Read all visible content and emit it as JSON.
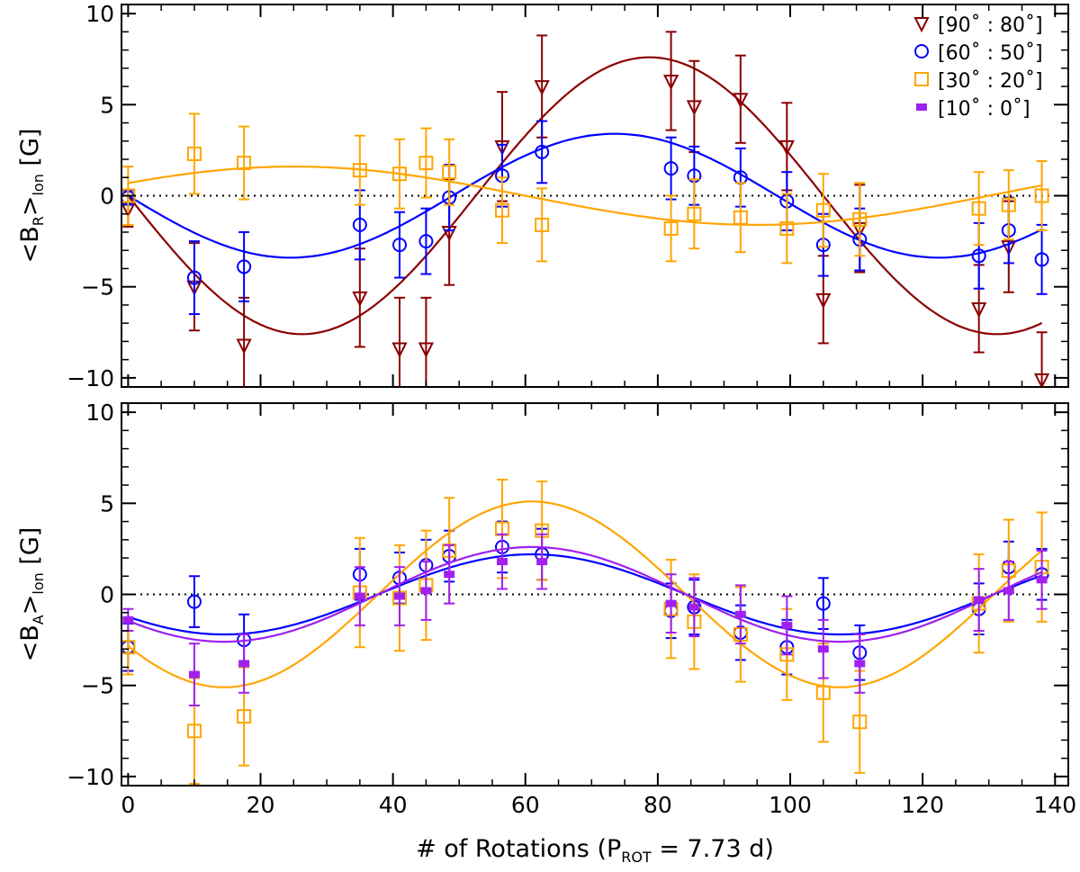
{
  "chart_data": [
    {
      "type": "scatter",
      "panel": "top",
      "ylabel": {
        "pre": "<B",
        "sub_main": "R",
        "post": ">",
        "sub_after": "lon",
        "unit": "[G]"
      },
      "xlim": [
        -1,
        142
      ],
      "ylim": [
        -10.5,
        10.5
      ],
      "xticks": [
        0,
        20,
        40,
        60,
        80,
        100,
        120,
        140
      ],
      "xtick_labels": [
        "",
        "",
        "",
        "",
        "",
        "",
        "",
        ""
      ],
      "yticks": [
        -10,
        -5,
        0,
        5,
        10
      ],
      "ytick_labels": [
        "−10",
        "−5",
        "0",
        "5",
        "10"
      ],
      "zero_line": true,
      "legend": {
        "placement": "top-right",
        "entries": [
          {
            "label": "[90˚ : 80˚]",
            "color": "#8b0000",
            "marker": "triangle-down"
          },
          {
            "label": "[60˚ : 50˚]",
            "color": "#0000ff",
            "marker": "circle"
          },
          {
            "label": "[30˚ : 20˚]",
            "color": "#ffa500",
            "marker": "square"
          },
          {
            "label": "[10˚ : 0˚]",
            "color": "#a020f0",
            "marker": "filled-rect"
          }
        ]
      },
      "series": [
        {
          "name": "[90˚ : 80˚]",
          "color": "#8b0000",
          "marker": "triangle-down",
          "x": [
            0,
            10,
            17.5,
            35,
            41,
            45,
            48.5,
            56.5,
            62.5,
            82,
            85.5,
            92.5,
            99.5,
            105,
            110.5,
            128.5,
            133,
            138
          ],
          "y": [
            -0.7,
            -5.0,
            -8.2,
            -5.6,
            -8.4,
            -8.4,
            -2.0,
            2.7,
            6.0,
            6.3,
            4.9,
            5.3,
            2.7,
            -5.7,
            -1.8,
            -6.2,
            -2.8,
            -10.1
          ],
          "err": [
            1.0,
            2.4,
            2.6,
            2.7,
            2.8,
            2.8,
            2.9,
            3.0,
            2.8,
            2.7,
            2.5,
            2.4,
            2.4,
            2.4,
            2.4,
            2.4,
            2.5,
            2.6
          ],
          "fit": {
            "amp": 7.6,
            "period": 105,
            "phase": 0
          }
        },
        {
          "name": "[60˚ : 50˚]",
          "color": "#0000ff",
          "marker": "circle",
          "x": [
            0,
            10,
            17.5,
            35,
            41,
            45,
            48.5,
            56.5,
            62.5,
            82,
            85.5,
            92.5,
            99.5,
            105,
            110.5,
            128.5,
            133,
            138
          ],
          "y": [
            -0.1,
            -4.5,
            -3.9,
            -1.6,
            -2.7,
            -2.5,
            -0.1,
            1.1,
            2.4,
            1.5,
            1.1,
            1.0,
            -0.3,
            -2.7,
            -2.4,
            -3.3,
            -1.9,
            -3.5
          ],
          "err": [
            0.4,
            2.0,
            1.9,
            1.9,
            1.8,
            1.8,
            1.8,
            1.7,
            1.7,
            1.7,
            1.6,
            1.6,
            1.6,
            1.7,
            1.7,
            1.8,
            1.8,
            1.9
          ],
          "fit": {
            "amp": 3.4,
            "period": 98,
            "phase": 0
          }
        },
        {
          "name": "[30˚ : 20˚]",
          "color": "#ffa500",
          "marker": "square",
          "x": [
            0,
            10,
            17.5,
            35,
            41,
            45,
            48.5,
            56.5,
            62.5,
            82,
            85.5,
            92.5,
            99.5,
            105,
            110.5,
            128.5,
            133,
            138
          ],
          "y": [
            0.0,
            2.3,
            1.8,
            1.4,
            1.2,
            1.8,
            1.3,
            -0.8,
            -1.6,
            -1.8,
            -1.0,
            -1.2,
            -1.8,
            -0.8,
            -1.3,
            -0.7,
            -0.5,
            0.0
          ],
          "err": [
            1.6,
            2.2,
            2.0,
            1.9,
            1.9,
            1.9,
            1.8,
            1.8,
            2.0,
            1.8,
            1.9,
            1.9,
            1.9,
            2.0,
            2.0,
            2.0,
            1.9,
            1.9
          ],
          "fit": {
            "type": "cos",
            "offset": 0,
            "amp": 1.6,
            "period": 140,
            "x0": 25
          }
        }
      ]
    },
    {
      "type": "scatter",
      "panel": "bottom",
      "xlabel": {
        "pre": "# of Rotations (P",
        "sub": "ROT",
        "post": " = 7.73 d)"
      },
      "ylabel": {
        "pre": "<B",
        "sub_main": "A",
        "post": ">",
        "sub_after": "lon",
        "unit": "[G]"
      },
      "xlim": [
        -1,
        142
      ],
      "ylim": [
        -10.5,
        10.5
      ],
      "xticks": [
        0,
        20,
        40,
        60,
        80,
        100,
        120,
        140
      ],
      "xtick_labels": [
        "0",
        "20",
        "40",
        "60",
        "80",
        "100",
        "120",
        "140"
      ],
      "yticks": [
        -10,
        -5,
        0,
        5,
        10
      ],
      "ytick_labels": [
        "−10",
        "−5",
        "0",
        "5",
        "10"
      ],
      "zero_line": true,
      "series": [
        {
          "name": "[60˚ : 50˚]",
          "color": "#0000ff",
          "marker": "circle",
          "x": [
            0,
            10,
            17.5,
            35,
            41,
            45,
            48.5,
            56.5,
            62.5,
            82,
            85.5,
            92.5,
            99.5,
            105,
            110.5,
            128.5,
            133,
            138
          ],
          "y": [
            -2.9,
            -0.4,
            -2.5,
            1.1,
            0.9,
            1.6,
            2.1,
            2.6,
            2.2,
            -0.9,
            -0.7,
            -2.1,
            -2.9,
            -0.5,
            -3.2,
            -0.8,
            1.5,
            1.1
          ],
          "err": [
            1.3,
            1.4,
            1.4,
            1.4,
            1.4,
            1.4,
            1.4,
            1.4,
            1.4,
            1.5,
            1.5,
            1.5,
            1.5,
            1.4,
            1.5,
            1.4,
            1.4,
            1.4
          ],
          "fit": {
            "type": "cos",
            "offset": 0,
            "amp": 2.2,
            "period": 93,
            "x0": 61
          }
        },
        {
          "name": "[30˚ : 20˚]",
          "color": "#ffa500",
          "marker": "square",
          "x": [
            0,
            10,
            17.5,
            35,
            41,
            45,
            48.5,
            56.5,
            62.5,
            82,
            85.5,
            92.5,
            99.5,
            105,
            110.5,
            128.5,
            133,
            138
          ],
          "y": [
            -2.9,
            -7.5,
            -6.7,
            0.1,
            -0.2,
            0.5,
            2.4,
            3.6,
            3.5,
            -0.8,
            -1.5,
            -2.2,
            -3.3,
            -5.4,
            -7.0,
            -0.5,
            1.3,
            1.5
          ],
          "err": [
            1.5,
            2.9,
            2.7,
            3.0,
            2.9,
            3.0,
            2.9,
            2.7,
            2.7,
            2.7,
            2.6,
            2.6,
            2.5,
            2.7,
            2.8,
            2.7,
            2.8,
            3.0
          ],
          "fit": {
            "type": "cos",
            "offset": 0,
            "amp": 5.1,
            "period": 93,
            "x0": 61
          }
        },
        {
          "name": "[10˚ : 0˚]",
          "color": "#a020f0",
          "marker": "filled-rect",
          "x": [
            0,
            10,
            17.5,
            35,
            41,
            45,
            48.5,
            56.5,
            62.5,
            82,
            85.5,
            92.5,
            99.5,
            105,
            110.5,
            128.5,
            133,
            138
          ],
          "y": [
            -1.4,
            -4.4,
            -3.8,
            -0.1,
            -0.1,
            0.2,
            1.1,
            1.8,
            1.8,
            -0.5,
            -0.7,
            -1.1,
            -1.7,
            -3.0,
            -3.8,
            -0.3,
            0.2,
            0.8
          ],
          "err": [
            0.6,
            1.7,
            1.6,
            1.6,
            1.6,
            1.6,
            1.6,
            1.5,
            1.5,
            1.6,
            1.6,
            1.6,
            1.6,
            1.6,
            1.6,
            1.7,
            1.6,
            1.6
          ],
          "fit": {
            "type": "cos",
            "offset": 0,
            "amp": 2.6,
            "period": 93,
            "x0": 61
          }
        }
      ]
    }
  ]
}
